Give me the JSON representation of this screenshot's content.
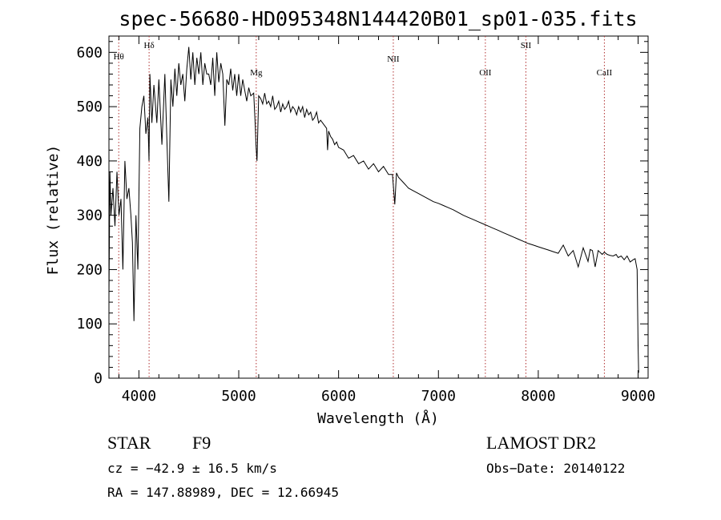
{
  "chart_data": {
    "type": "line",
    "title": "spec-56680-HD095348N144420B01_sp01-035.fits",
    "xlabel": "Wavelength (Å)",
    "ylabel": "Flux (relative)",
    "xlim": [
      3700,
      9100
    ],
    "ylim": [
      0,
      630
    ],
    "xticks": [
      4000,
      5000,
      6000,
      7000,
      8000,
      9000
    ],
    "xtick_labels": [
      "4000",
      "5000",
      "6000",
      "7000",
      "8000",
      "9000"
    ],
    "yticks": [
      0,
      100,
      200,
      300,
      400,
      500,
      600
    ],
    "ytick_labels": [
      "0",
      "100",
      "200",
      "300",
      "400",
      "500",
      "600"
    ],
    "grid": false,
    "series": [
      {
        "name": "spectrum",
        "x": [
          3700,
          3710,
          3720,
          3740,
          3760,
          3780,
          3800,
          3820,
          3840,
          3860,
          3880,
          3900,
          3920,
          3935,
          3950,
          3970,
          3990,
          4010,
          4030,
          4050,
          4070,
          4090,
          4101,
          4110,
          4130,
          4150,
          4180,
          4200,
          4230,
          4260,
          4280,
          4300,
          4320,
          4340,
          4360,
          4380,
          4400,
          4420,
          4440,
          4460,
          4480,
          4500,
          4520,
          4540,
          4560,
          4580,
          4600,
          4620,
          4640,
          4660,
          4680,
          4700,
          4720,
          4740,
          4760,
          4780,
          4800,
          4820,
          4840,
          4861,
          4880,
          4900,
          4920,
          4940,
          4960,
          4980,
          5000,
          5020,
          5040,
          5060,
          5080,
          5100,
          5120,
          5150,
          5167,
          5172,
          5183,
          5200,
          5220,
          5240,
          5260,
          5280,
          5300,
          5320,
          5340,
          5360,
          5380,
          5400,
          5420,
          5440,
          5460,
          5480,
          5500,
          5520,
          5540,
          5560,
          5580,
          5600,
          5620,
          5640,
          5660,
          5680,
          5700,
          5720,
          5740,
          5760,
          5780,
          5800,
          5820,
          5840,
          5860,
          5880,
          5890,
          5900,
          5920,
          5940,
          5960,
          5980,
          6000,
          6050,
          6100,
          6150,
          6200,
          6250,
          6300,
          6350,
          6400,
          6450,
          6500,
          6540,
          6563,
          6580,
          6600,
          6650,
          6700,
          6750,
          6800,
          6850,
          6900,
          6950,
          7000,
          7050,
          7100,
          7150,
          7200,
          7250,
          7300,
          7350,
          7400,
          7450,
          7500,
          7550,
          7600,
          7650,
          7700,
          7750,
          7800,
          7850,
          7900,
          7950,
          8000,
          8050,
          8100,
          8150,
          8200,
          8250,
          8300,
          8350,
          8400,
          8450,
          8498,
          8520,
          8542,
          8570,
          8600,
          8640,
          8662,
          8690,
          8720,
          8750,
          8780,
          8800,
          8830,
          8860,
          8890,
          8920,
          8950,
          8970,
          8990,
          9000,
          9005
        ],
        "values": [
          150,
          380,
          300,
          350,
          280,
          380,
          300,
          330,
          200,
          400,
          330,
          350,
          300,
          250,
          105,
          300,
          200,
          460,
          500,
          520,
          450,
          480,
          400,
          560,
          470,
          540,
          470,
          550,
          430,
          560,
          440,
          325,
          550,
          500,
          570,
          520,
          580,
          540,
          560,
          510,
          570,
          610,
          550,
          600,
          540,
          590,
          560,
          600,
          540,
          580,
          560,
          560,
          540,
          590,
          520,
          600,
          545,
          580,
          560,
          465,
          550,
          540,
          570,
          530,
          560,
          520,
          560,
          520,
          550,
          530,
          510,
          535,
          520,
          525,
          460,
          430,
          400,
          520,
          515,
          505,
          525,
          505,
          510,
          500,
          520,
          495,
          500,
          510,
          490,
          505,
          495,
          500,
          510,
          490,
          500,
          495,
          485,
          500,
          490,
          500,
          480,
          495,
          485,
          490,
          475,
          480,
          490,
          470,
          475,
          470,
          465,
          460,
          420,
          455,
          445,
          440,
          430,
          435,
          425,
          420,
          405,
          410,
          395,
          400,
          385,
          395,
          380,
          390,
          375,
          375,
          320,
          378,
          370,
          360,
          350,
          345,
          340,
          335,
          330,
          325,
          322,
          318,
          314,
          310,
          305,
          300,
          296,
          292,
          288,
          284,
          280,
          276,
          272,
          268,
          264,
          260,
          256,
          252,
          248,
          245,
          242,
          239,
          236,
          233,
          230,
          245,
          225,
          235,
          205,
          240,
          215,
          237,
          235,
          205,
          235,
          228,
          232,
          228,
          226,
          225,
          228,
          222,
          225,
          218,
          225,
          214,
          218,
          220,
          200,
          60,
          10
        ]
      }
    ],
    "lines": [
      {
        "label": "Hθ",
        "x": 3798
      },
      {
        "label": "Hδ",
        "x": 4102
      },
      {
        "label": "Mg",
        "x": 5175
      },
      {
        "label": "NII",
        "x": 6548
      },
      {
        "label": "OII",
        "x": 7470
      },
      {
        "label": "SII",
        "x": 7876
      },
      {
        "label": "CaII",
        "x": 8662
      }
    ]
  },
  "info": {
    "object_type": "STAR",
    "subclass": "F9",
    "survey": "LAMOST DR2",
    "cz": "cz = −42.9 ± 16.5 km/s",
    "obs_date": "Obs−Date: 20140122",
    "coords": "RA = 147.88989, DEC =  12.66945"
  },
  "colors": {
    "spectrum": "#000000",
    "line_markers": "#b03030",
    "axis": "#000000",
    "background": "#ffffff"
  }
}
